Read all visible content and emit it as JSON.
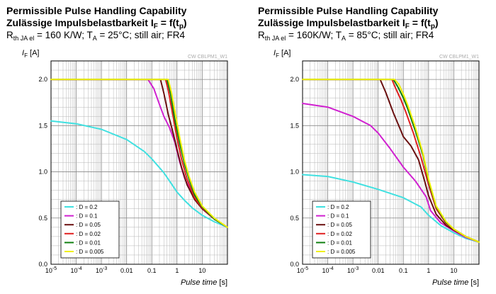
{
  "chart_data": [
    {
      "type": "line",
      "title_line1": "Permissible Pulse Handling Capability",
      "title_line2": "Zulässige Impulsbelastbarkeit I",
      "title_line2_sub": "F",
      "title_line2_tail": " = f(t",
      "title_line2_sub2": "p",
      "title_line2_end": ")",
      "condition_prefix": "R",
      "condition_sub": "th JA el",
      "condition_text": " = 160 K/W; T",
      "condition_sub2": "A",
      "condition_tail": " = 25°C; still air; FR4",
      "code": "CW CBLPM1_W1",
      "ylabel": "I",
      "ylabel_sub": "F",
      "ylabel_unit": " [A]",
      "xlabel": "Pulse time",
      "xlabel_unit": " [s]",
      "xscale": "log",
      "xlim": [
        1e-05,
        100
      ],
      "ylim": [
        0,
        2.2
      ],
      "x_tick_labels": [
        "10-5",
        "10-4",
        "10-3",
        "0.01",
        "0.1",
        "1",
        "10"
      ],
      "y_tick_labels": [
        "0.0",
        "0.5",
        "1.0",
        "1.5",
        "2.0"
      ],
      "y_ticks": [
        0,
        0.5,
        1.0,
        1.5,
        2.0
      ],
      "grid": true,
      "legend_position": "bottom-left",
      "series": [
        {
          "name": ": D = 0.2",
          "color": "#40e0e0",
          "points": [
            [
              1e-05,
              1.55
            ],
            [
              0.0001,
              1.52
            ],
            [
              0.001,
              1.46
            ],
            [
              0.01,
              1.35
            ],
            [
              0.05,
              1.22
            ],
            [
              0.1,
              1.14
            ],
            [
              0.3,
              0.99
            ],
            [
              0.6,
              0.87
            ],
            [
              1,
              0.78
            ],
            [
              2,
              0.69
            ],
            [
              4,
              0.61
            ],
            [
              10,
              0.53
            ],
            [
              30,
              0.46
            ],
            [
              100,
              0.4
            ]
          ]
        },
        {
          "name": ": D = 0.1",
          "color": "#d020d0",
          "points": [
            [
              1e-05,
              2.0
            ],
            [
              0.07,
              2.0
            ],
            [
              0.12,
              1.9
            ],
            [
              0.2,
              1.73
            ],
            [
              0.3,
              1.6
            ],
            [
              0.5,
              1.48
            ],
            [
              0.8,
              1.33
            ],
            [
              1.3,
              1.1
            ],
            [
              2,
              0.93
            ],
            [
              5,
              0.71
            ],
            [
              10,
              0.6
            ],
            [
              30,
              0.49
            ],
            [
              100,
              0.4
            ]
          ]
        },
        {
          "name": ": D = 0.05",
          "color": "#6a1010",
          "points": [
            [
              1e-05,
              2.0
            ],
            [
              0.22,
              2.0
            ],
            [
              0.3,
              1.85
            ],
            [
              0.45,
              1.62
            ],
            [
              0.7,
              1.42
            ],
            [
              1,
              1.24
            ],
            [
              1.5,
              1.05
            ],
            [
              2.5,
              0.86
            ],
            [
              5,
              0.7
            ],
            [
              10,
              0.6
            ],
            [
              30,
              0.49
            ],
            [
              100,
              0.4
            ]
          ]
        },
        {
          "name": ": D = 0.02",
          "color": "#e02020",
          "points": [
            [
              1e-05,
              2.0
            ],
            [
              0.35,
              2.0
            ],
            [
              0.45,
              1.88
            ],
            [
              0.7,
              1.6
            ],
            [
              1,
              1.36
            ],
            [
              1.5,
              1.14
            ],
            [
              2.5,
              0.92
            ],
            [
              5,
              0.72
            ],
            [
              10,
              0.61
            ],
            [
              30,
              0.49
            ],
            [
              100,
              0.4
            ]
          ]
        },
        {
          "name": ": D = 0.01",
          "color": "#108010",
          "points": [
            [
              1e-05,
              2.0
            ],
            [
              0.4,
              2.0
            ],
            [
              0.55,
              1.85
            ],
            [
              0.8,
              1.58
            ],
            [
              1.2,
              1.34
            ],
            [
              2,
              1.08
            ],
            [
              3,
              0.92
            ],
            [
              5,
              0.75
            ],
            [
              10,
              0.62
            ],
            [
              30,
              0.49
            ],
            [
              100,
              0.4
            ]
          ]
        },
        {
          "name": ": D = 0.005",
          "color": "#f0f000",
          "points": [
            [
              1e-05,
              2.0
            ],
            [
              0.45,
              2.0
            ],
            [
              0.6,
              1.86
            ],
            [
              0.9,
              1.6
            ],
            [
              1.3,
              1.36
            ],
            [
              2,
              1.12
            ],
            [
              3,
              0.95
            ],
            [
              5,
              0.78
            ],
            [
              10,
              0.63
            ],
            [
              30,
              0.5
            ],
            [
              100,
              0.4
            ]
          ]
        }
      ]
    },
    {
      "type": "line",
      "title_line1": "Permissible Pulse Handling Capability",
      "title_line2": "Zulässige Impulsbelastbarkeit I",
      "title_line2_sub": "F",
      "title_line2_tail": " = f(t",
      "title_line2_sub2": "p",
      "title_line2_end": ")",
      "condition_prefix": "R",
      "condition_sub": "th JA el",
      "condition_text": " = 160K/W; T",
      "condition_sub2": "A",
      "condition_tail": " = 85°C; still air; FR4",
      "code": "CW CBLPM1_W1",
      "ylabel": "I",
      "ylabel_sub": "F",
      "ylabel_unit": " [A]",
      "xlabel": "Pulse time",
      "xlabel_unit": " [s]",
      "xscale": "log",
      "xlim": [
        1e-05,
        100
      ],
      "ylim": [
        0,
        2.2
      ],
      "x_tick_labels": [
        "10-5",
        "10-4",
        "10-3",
        "0.01",
        "0.1",
        "1",
        "10"
      ],
      "y_tick_labels": [
        "0.0",
        "0.5",
        "1.0",
        "1.5",
        "2.0"
      ],
      "y_ticks": [
        0,
        0.5,
        1.0,
        1.5,
        2.0
      ],
      "grid": true,
      "legend_position": "bottom-left",
      "series": [
        {
          "name": ": D = 0.2",
          "color": "#40e0e0",
          "points": [
            [
              1e-05,
              0.97
            ],
            [
              0.0001,
              0.95
            ],
            [
              0.001,
              0.89
            ],
            [
              0.01,
              0.81
            ],
            [
              0.1,
              0.72
            ],
            [
              0.5,
              0.62
            ],
            [
              1,
              0.53
            ],
            [
              3,
              0.42
            ],
            [
              10,
              0.34
            ],
            [
              30,
              0.28
            ],
            [
              100,
              0.24
            ]
          ]
        },
        {
          "name": ": D = 0.1",
          "color": "#d020d0",
          "points": [
            [
              1e-05,
              1.74
            ],
            [
              0.0001,
              1.7
            ],
            [
              0.001,
              1.6
            ],
            [
              0.005,
              1.5
            ],
            [
              0.01,
              1.42
            ],
            [
              0.03,
              1.25
            ],
            [
              0.1,
              1.05
            ],
            [
              0.3,
              0.9
            ],
            [
              0.8,
              0.73
            ],
            [
              1.2,
              0.58
            ],
            [
              3,
              0.45
            ],
            [
              10,
              0.36
            ],
            [
              30,
              0.29
            ],
            [
              100,
              0.24
            ]
          ]
        },
        {
          "name": ": D = 0.05",
          "color": "#6a1010",
          "points": [
            [
              1e-05,
              2.0
            ],
            [
              0.012,
              2.0
            ],
            [
              0.02,
              1.86
            ],
            [
              0.04,
              1.64
            ],
            [
              0.07,
              1.48
            ],
            [
              0.1,
              1.38
            ],
            [
              0.2,
              1.28
            ],
            [
              0.4,
              1.13
            ],
            [
              0.7,
              0.9
            ],
            [
              1,
              0.74
            ],
            [
              2,
              0.54
            ],
            [
              5,
              0.42
            ],
            [
              10,
              0.37
            ],
            [
              30,
              0.3
            ],
            [
              100,
              0.24
            ]
          ]
        },
        {
          "name": ": D = 0.02",
          "color": "#e02020",
          "points": [
            [
              1e-05,
              2.0
            ],
            [
              0.035,
              2.0
            ],
            [
              0.05,
              1.9
            ],
            [
              0.08,
              1.78
            ],
            [
              0.12,
              1.66
            ],
            [
              0.25,
              1.42
            ],
            [
              0.5,
              1.16
            ],
            [
              1,
              0.86
            ],
            [
              2,
              0.6
            ],
            [
              5,
              0.44
            ],
            [
              10,
              0.38
            ],
            [
              30,
              0.3
            ],
            [
              100,
              0.24
            ]
          ]
        },
        {
          "name": ": D = 0.01",
          "color": "#108010",
          "points": [
            [
              1e-05,
              2.0
            ],
            [
              0.04,
              2.0
            ],
            [
              0.06,
              1.92
            ],
            [
              0.1,
              1.8
            ],
            [
              0.15,
              1.68
            ],
            [
              0.3,
              1.44
            ],
            [
              0.6,
              1.18
            ],
            [
              1,
              0.9
            ],
            [
              2,
              0.62
            ],
            [
              5,
              0.45
            ],
            [
              10,
              0.38
            ],
            [
              30,
              0.3
            ],
            [
              100,
              0.24
            ]
          ]
        },
        {
          "name": ": D = 0.005",
          "color": "#f0f000",
          "points": [
            [
              1e-05,
              2.0
            ],
            [
              0.045,
              2.0
            ],
            [
              0.065,
              1.95
            ],
            [
              0.1,
              1.84
            ],
            [
              0.15,
              1.72
            ],
            [
              0.3,
              1.48
            ],
            [
              0.6,
              1.2
            ],
            [
              1,
              0.92
            ],
            [
              2,
              0.63
            ],
            [
              5,
              0.46
            ],
            [
              10,
              0.38
            ],
            [
              30,
              0.3
            ],
            [
              100,
              0.24
            ]
          ]
        }
      ]
    }
  ]
}
